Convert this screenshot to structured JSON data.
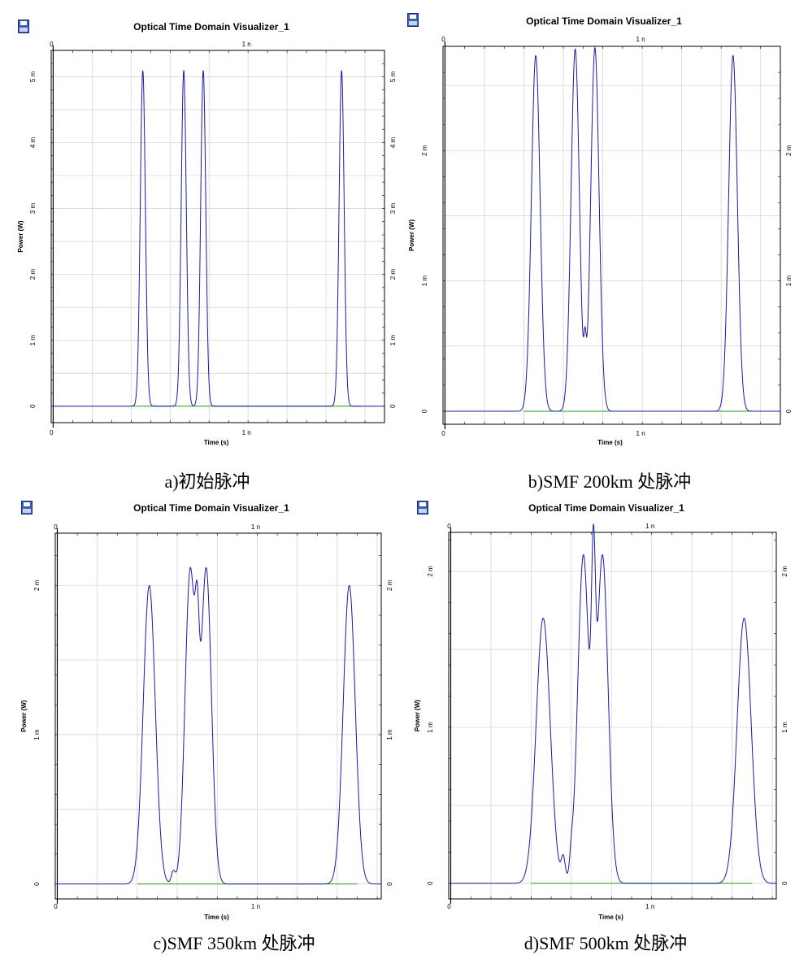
{
  "colors": {
    "signal": "#1a1aa6",
    "noise": "#1e9e1e",
    "grid": "#d6d6d6",
    "frame": "#000000"
  },
  "icon": "save-floppy-icon",
  "chart_data": [
    {
      "type": "line",
      "title": "Optical Time Domain Visualizer_1",
      "xlabel": "Time (s)",
      "ylabel": "Power (W)",
      "xlim": [
        -0.01,
        1.7
      ],
      "ylim": [
        -0.00025,
        0.0054
      ],
      "x_ticks": [
        {
          "v": 0,
          "label": "0"
        },
        {
          "v": 1,
          "label": "1 n"
        }
      ],
      "y_ticks": [
        {
          "v": 0,
          "label": "0"
        },
        {
          "v": 0.001,
          "label": "1 m"
        },
        {
          "v": 0.002,
          "label": "2 m"
        },
        {
          "v": 0.003,
          "label": "3 m"
        },
        {
          "v": 0.004,
          "label": "4 m"
        },
        {
          "v": 0.005,
          "label": "5 m"
        }
      ],
      "grid": true,
      "caption": "a)初始脉冲",
      "series": [
        {
          "peaks": [
            {
              "t": 0.46,
              "a": 0.0051,
              "w": 0.013
            },
            {
              "t": 0.67,
              "a": 0.0051,
              "w": 0.013
            },
            {
              "t": 0.77,
              "a": 0.0051,
              "w": 0.013
            },
            {
              "t": 1.48,
              "a": 0.0051,
              "w": 0.013
            }
          ]
        }
      ]
    },
    {
      "type": "line",
      "title": "Optical Time Domain Visualizer_1",
      "xlabel": "Time (s)",
      "ylabel": "Power (W)",
      "xlim": [
        -0.01,
        1.7
      ],
      "ylim": [
        -0.0001,
        0.0028
      ],
      "x_ticks": [
        {
          "v": 0,
          "label": "0"
        },
        {
          "v": 1,
          "label": "1 n"
        }
      ],
      "y_ticks": [
        {
          "v": 0,
          "label": "0"
        },
        {
          "v": 0.001,
          "label": "1 m"
        },
        {
          "v": 0.002,
          "label": "2 m"
        }
      ],
      "grid": true,
      "caption": "b)SMF 200km 处脉冲",
      "series": [
        {
          "peaks": [
            {
              "t": 0.46,
              "a": 0.00273,
              "w": 0.022
            },
            {
              "t": 0.66,
              "a": 0.00278,
              "w": 0.021
            },
            {
              "t": 0.76,
              "a": 0.00279,
              "w": 0.021
            },
            {
              "t": 0.71,
              "a": 0.00032,
              "w": 0.006
            },
            {
              "t": 1.46,
              "a": 0.00273,
              "w": 0.022
            }
          ]
        }
      ]
    },
    {
      "type": "line",
      "title": "Optical Time Domain Visualizer_1",
      "xlabel": "Time (s)",
      "ylabel": "Power (W)",
      "xlim": [
        -0.01,
        1.62
      ],
      "ylim": [
        -0.0001,
        0.00235
      ],
      "x_ticks": [
        {
          "v": 0,
          "label": "0"
        },
        {
          "v": 1,
          "label": "1 n"
        }
      ],
      "y_ticks": [
        {
          "v": 0,
          "label": "0"
        },
        {
          "v": 0.001,
          "label": "1 m"
        },
        {
          "v": 0.002,
          "label": "2 m"
        }
      ],
      "grid": true,
      "caption": "c)SMF 350km 处脉冲",
      "series": [
        {
          "peaks": [
            {
              "t": 0.46,
              "a": 0.002,
              "w": 0.03
            },
            {
              "t": 0.665,
              "a": 0.0021,
              "w": 0.026
            },
            {
              "t": 0.745,
              "a": 0.0021,
              "w": 0.026
            },
            {
              "t": 0.7,
              "a": 0.0007,
              "w": 0.01
            },
            {
              "t": 0.58,
              "a": 8e-05,
              "w": 0.01
            },
            {
              "t": 1.46,
              "a": 0.002,
              "w": 0.03
            }
          ]
        }
      ]
    },
    {
      "type": "line",
      "title": "Optical Time Domain Visualizer_1",
      "xlabel": "Time (s)",
      "ylabel": "Power (W)",
      "xlim": [
        -0.01,
        1.62
      ],
      "ylim": [
        -0.0001,
        0.00225
      ],
      "x_ticks": [
        {
          "v": 0,
          "label": "0"
        },
        {
          "v": 1,
          "label": "1 n"
        }
      ],
      "y_ticks": [
        {
          "v": 0,
          "label": "0"
        },
        {
          "v": 0.001,
          "label": "1 m"
        },
        {
          "v": 0.002,
          "label": "2 m"
        }
      ],
      "grid": true,
      "caption": "d)SMF 500km 处脉冲",
      "series": [
        {
          "peaks": [
            {
              "t": 0.46,
              "a": 0.0017,
              "w": 0.035
            },
            {
              "t": 0.66,
              "a": 0.0021,
              "w": 0.028
            },
            {
              "t": 0.755,
              "a": 0.0021,
              "w": 0.028
            },
            {
              "t": 0.71,
              "a": 0.0013,
              "w": 0.01
            },
            {
              "t": 0.56,
              "a": 0.00015,
              "w": 0.01
            },
            {
              "t": 0.6,
              "a": 0.0001,
              "w": 0.008
            },
            {
              "t": 1.46,
              "a": 0.0017,
              "w": 0.035
            }
          ]
        }
      ]
    }
  ]
}
